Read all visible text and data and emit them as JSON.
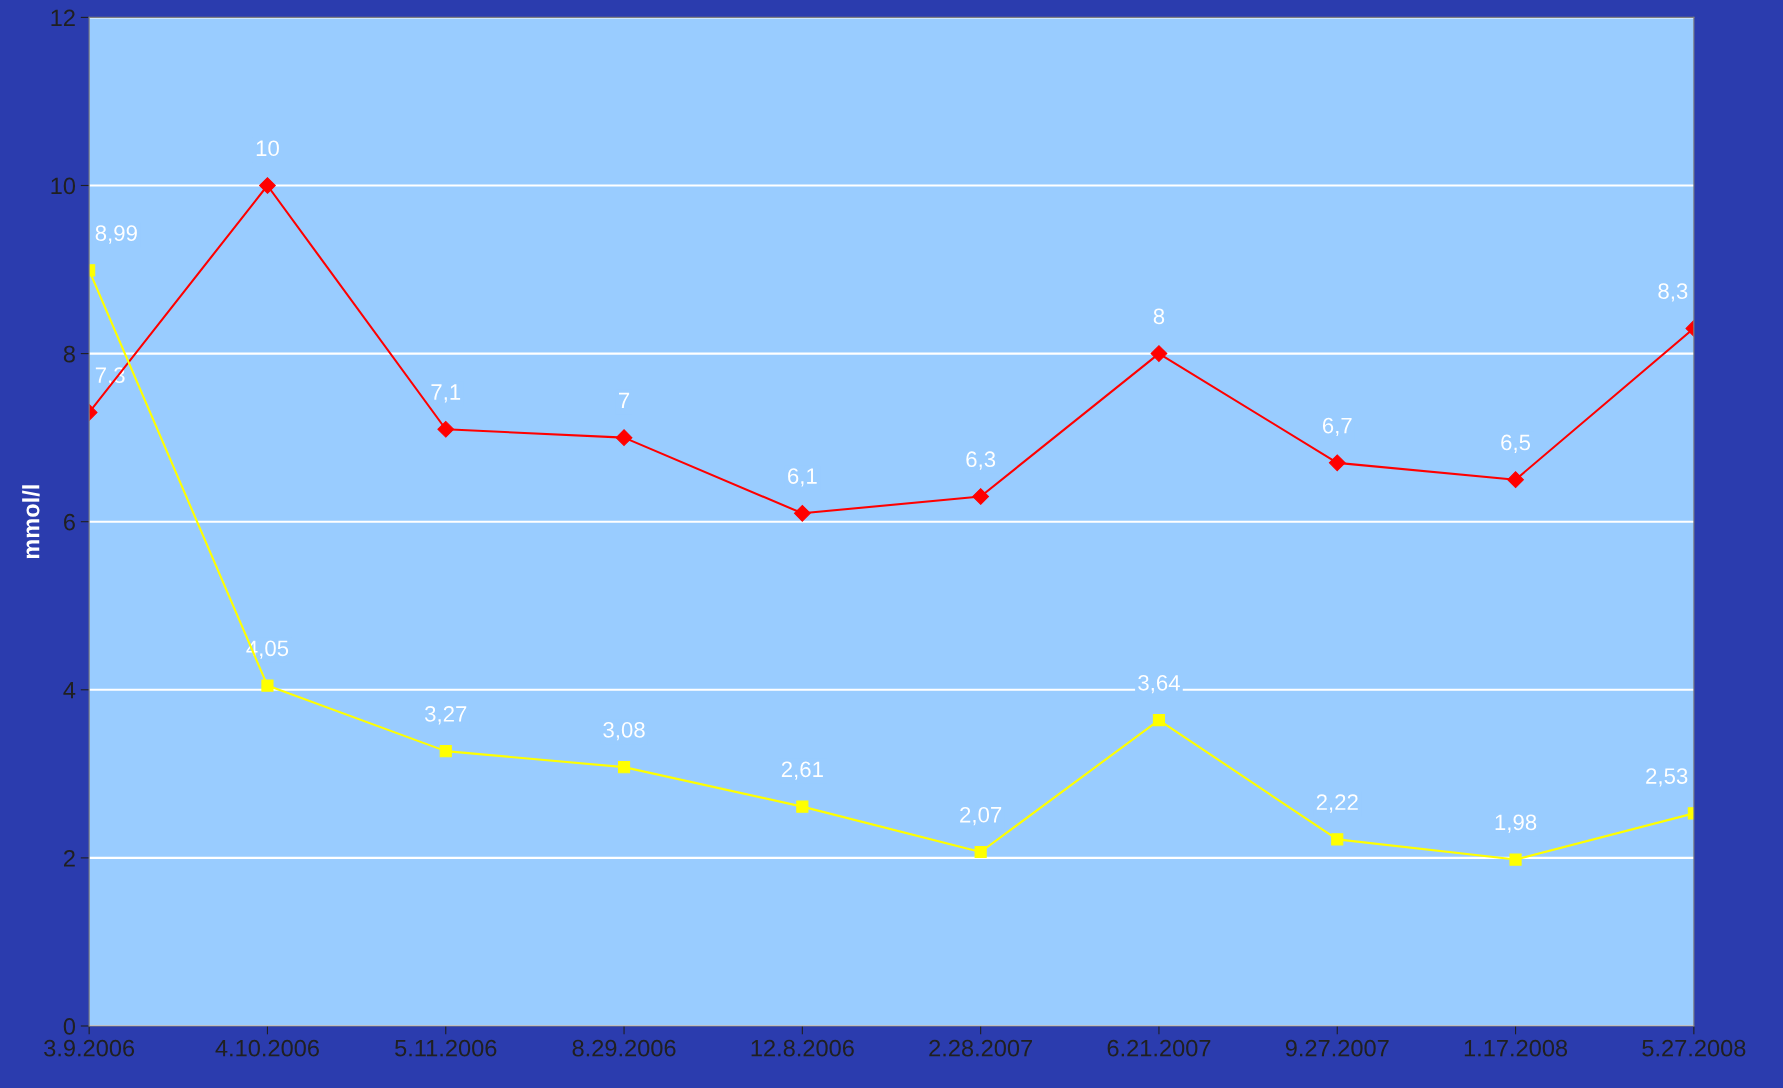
{
  "chart_data": {
    "type": "line",
    "ylabel": "mmol/l",
    "categories": [
      "3.9.2006",
      "4.10.2006",
      "5.11.2006",
      "8.29.2006",
      "12.8.2006",
      "2.28.2007",
      "6.21.2007",
      "9.27.2007",
      "1.17.2008",
      "5.27.2008"
    ],
    "series": [
      {
        "color": "#ff0000",
        "marker": "diamond",
        "values": [
          7.3,
          10,
          7.1,
          7,
          6.1,
          6.3,
          8,
          6.7,
          6.5,
          8.3
        ],
        "value_labels": [
          "7,3",
          "10",
          "7,1",
          "7",
          "6,1",
          "6,3",
          "8",
          "6,7",
          "6,5",
          "8,3"
        ]
      },
      {
        "color": "#ffff00",
        "marker": "square",
        "values": [
          8.99,
          4.05,
          3.27,
          3.08,
          2.61,
          2.07,
          3.64,
          2.22,
          1.98,
          2.53
        ],
        "value_labels": [
          "8,99",
          "4,05",
          "3,27",
          "3,08",
          "2,61",
          "2,07",
          "3,64",
          "2,22",
          "1,98",
          "2,53"
        ]
      }
    ],
    "ylim": [
      0,
      12
    ],
    "yticks": [
      0,
      2,
      4,
      6,
      8,
      10,
      12
    ],
    "grid": "y",
    "legend": false,
    "line_style": "solid"
  }
}
